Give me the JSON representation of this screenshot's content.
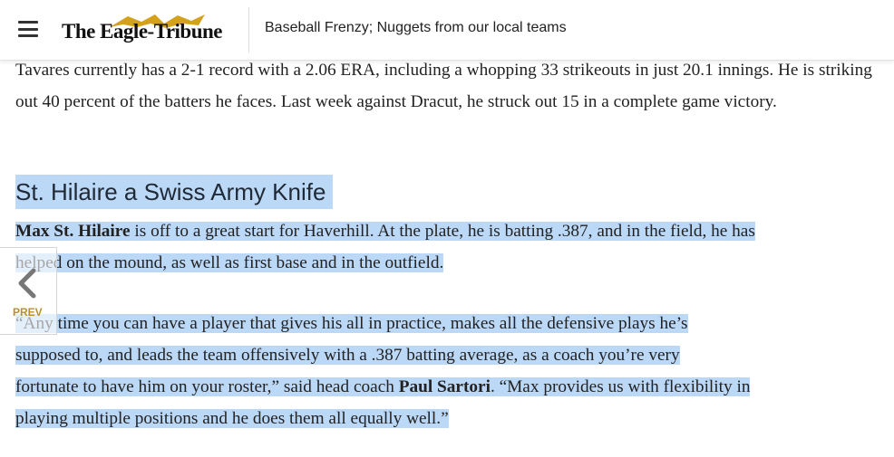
{
  "header": {
    "logo_text": "The Eagle-Tribune",
    "title": "Baseball Frenzy; Nuggets from our local teams",
    "menu_icon": "hamburger-icon",
    "logo_icon": "eagle-icon",
    "brand_color": "#d4a21a"
  },
  "article": {
    "p1": "Tavares currently has a 2-1 record with a 2.06 ERA, including a whopping 33 strikeouts in just 20.1 innings. He is striking out 40 percent of the batters he faces. Last week against Dracut, he struck out 15 in a complete game victory.",
    "subhead": "St. Hilaire a Swiss Army Knife",
    "p2_name": "Max St. Hilaire",
    "p2_line1_rest": " is off to a great start for Haverhill. At the plate, he is batting .387, and in the field, he has",
    "p2_line2": "helped on the mound, as well as first base and in the outfield.",
    "p3_line1": "“Any time you can have a player that gives his all in practice, makes all the defensive plays he’s",
    "p3_line2": "supposed to, and leads the team offensively with a .387 batting average, as a coach you’re very",
    "p3_line3_a": "fortunate to have him on your roster,” said head coach ",
    "p3_coach": "Paul Sartori",
    "p3_line3_b": ". “Max provides us with flexibility in",
    "p3_line4": "playing multiple positions and he does them all equally well.”",
    "highlight_color": "#bcd8f7"
  },
  "nav": {
    "prev_label": "PREV",
    "prev_icon": "chevron-left-icon"
  }
}
